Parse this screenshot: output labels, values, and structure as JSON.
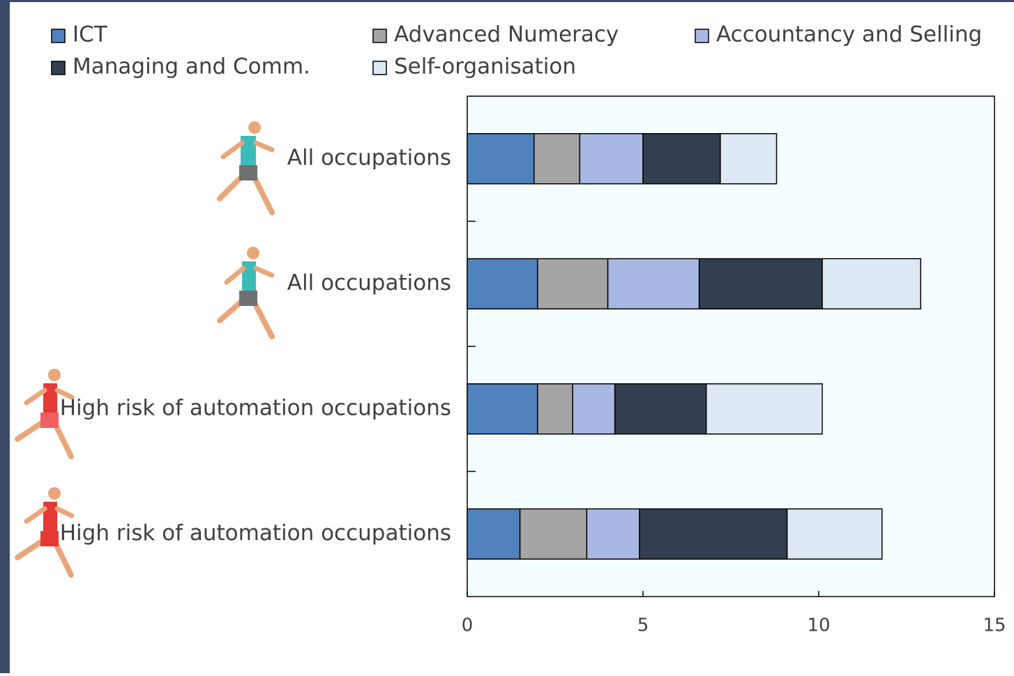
{
  "chart_data": {
    "type": "stacked-bar-horizontal",
    "categories": [
      "All occupations",
      "All occupations",
      "High risk of automation occupations",
      "High risk of automation occupations"
    ],
    "series": [
      {
        "name": "ICT",
        "color": "#4f81bd",
        "values": [
          1.9,
          2.0,
          2.0,
          1.5
        ]
      },
      {
        "name": "Advanced Numeracy",
        "color": "#a5a5a5",
        "values": [
          1.3,
          2.0,
          1.0,
          1.9
        ]
      },
      {
        "name": "Accountancy and Selling",
        "color": "#a9b8e3",
        "values": [
          1.8,
          2.6,
          1.2,
          1.5
        ]
      },
      {
        "name": "Managing and Comm.",
        "color": "#333f50",
        "values": [
          2.2,
          3.5,
          2.6,
          4.2
        ]
      },
      {
        "name": "Self-organisation",
        "color": "#dde8f4",
        "values": [
          1.6,
          2.8,
          3.3,
          2.7
        ]
      }
    ],
    "xlim": [
      0,
      15
    ],
    "xticks": [
      0,
      5,
      10,
      15
    ]
  }
}
